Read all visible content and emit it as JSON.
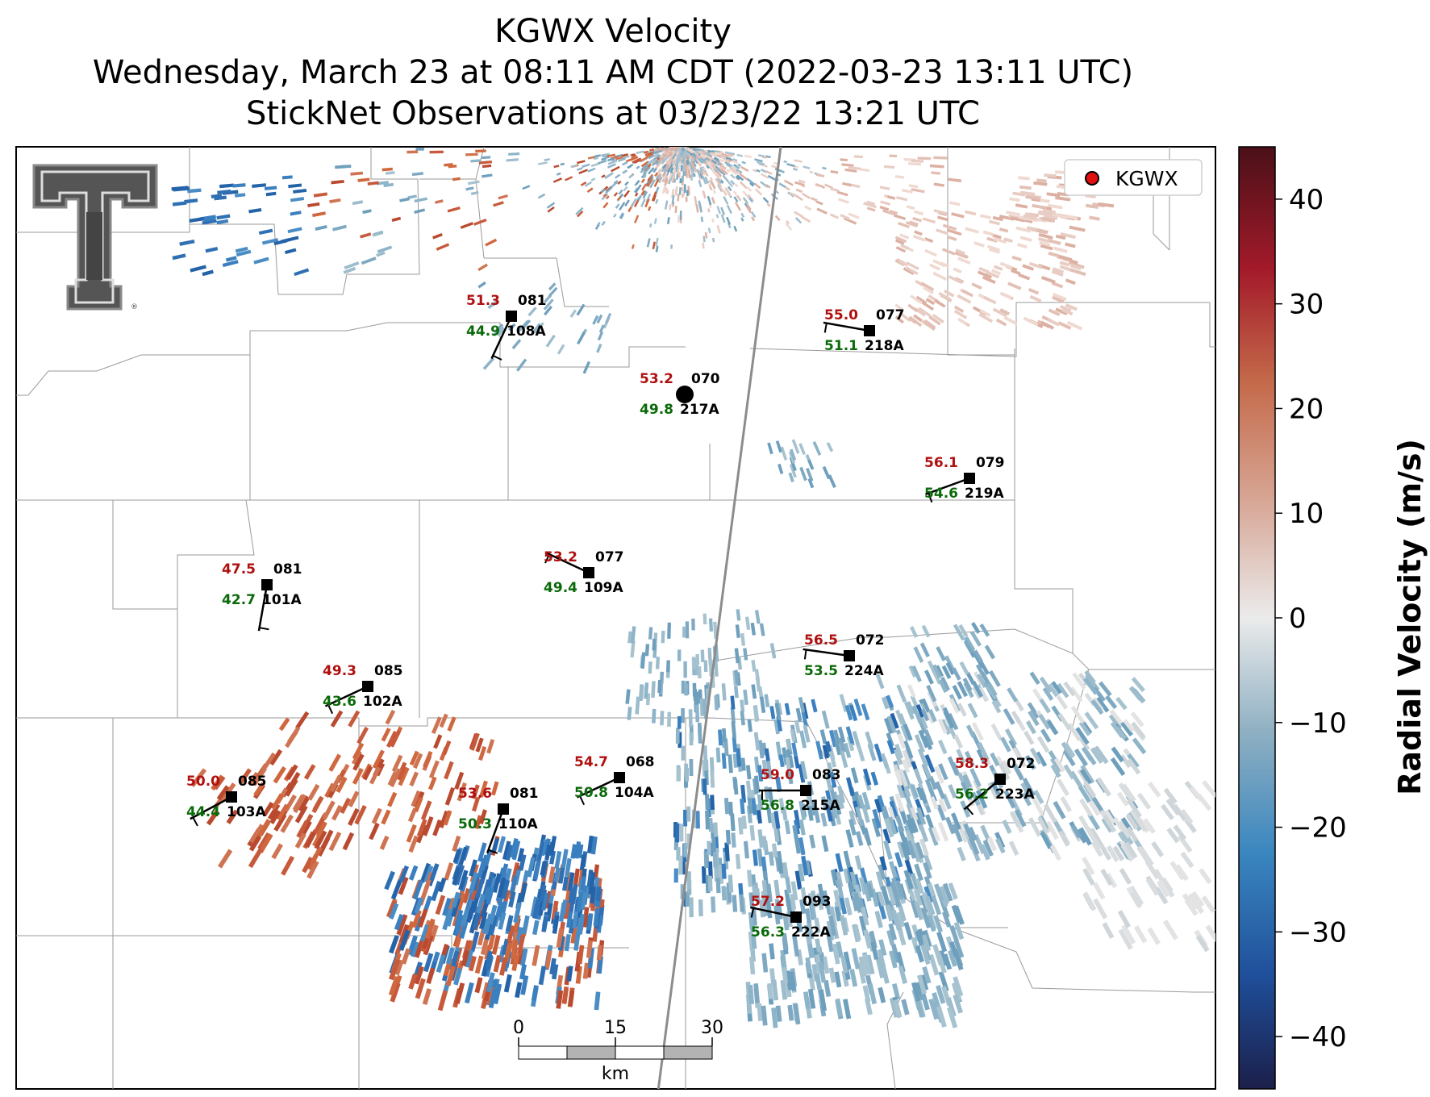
{
  "title": {
    "line1": "KGWX Velocity",
    "line2": "Wednesday, March 23 at 08:11 AM CDT (2022-03-23 13:11 UTC)",
    "line3": "StickNet Observations at 03/23/22 13:21 UTC"
  },
  "legend": {
    "label": "KGWX",
    "marker_color": "#e01010"
  },
  "colorbar": {
    "label": "Radial Velocity (m/s)",
    "range": [
      -45,
      45
    ],
    "ticks": [
      "40",
      "30",
      "20",
      "10",
      "0",
      "−10",
      "−20",
      "−30",
      "−40"
    ],
    "colors": [
      "#f2f2f2",
      "#1f1f5a",
      "#2a6fb8",
      "#c6a58f",
      "#b01a2a",
      "#4a1018"
    ]
  },
  "scale_bar": {
    "ticks": [
      "0",
      "15",
      "30"
    ],
    "unit": "km"
  },
  "logo": {
    "icon": "texas-tech-double-t-logo"
  },
  "stations": [
    {
      "id": "108A",
      "top": "51.3",
      "right": "081",
      "bottom": "44.9"
    },
    {
      "id": "218A",
      "top": "55.0",
      "right": "077",
      "bottom": "51.1"
    },
    {
      "id": "217A",
      "top": "53.2",
      "right": "070",
      "bottom": "49.8"
    },
    {
      "id": "219A",
      "top": "56.1",
      "right": "079",
      "bottom": "54.6"
    },
    {
      "id": "109A",
      "top": "53.2",
      "right": "077",
      "bottom": "49.4"
    },
    {
      "id": "101A",
      "top": "47.5",
      "right": "081",
      "bottom": "42.7"
    },
    {
      "id": "224A",
      "top": "56.5",
      "right": "072",
      "bottom": "53.5"
    },
    {
      "id": "102A",
      "top": "49.3",
      "right": "085",
      "bottom": "43.6"
    },
    {
      "id": "104A",
      "top": "54.7",
      "right": "068",
      "bottom": "50.8"
    },
    {
      "id": "215A",
      "top": "59.0",
      "right": "083",
      "bottom": "56.8"
    },
    {
      "id": "223A",
      "top": "58.3",
      "right": "072",
      "bottom": "56.2"
    },
    {
      "id": "103A",
      "top": "50.0",
      "right": "085",
      "bottom": "44.4"
    },
    {
      "id": "110A",
      "top": "53.6",
      "right": "081",
      "bottom": "50.3"
    },
    {
      "id": "222A",
      "top": "57.2",
      "right": "093",
      "bottom": "56.3"
    }
  ]
}
